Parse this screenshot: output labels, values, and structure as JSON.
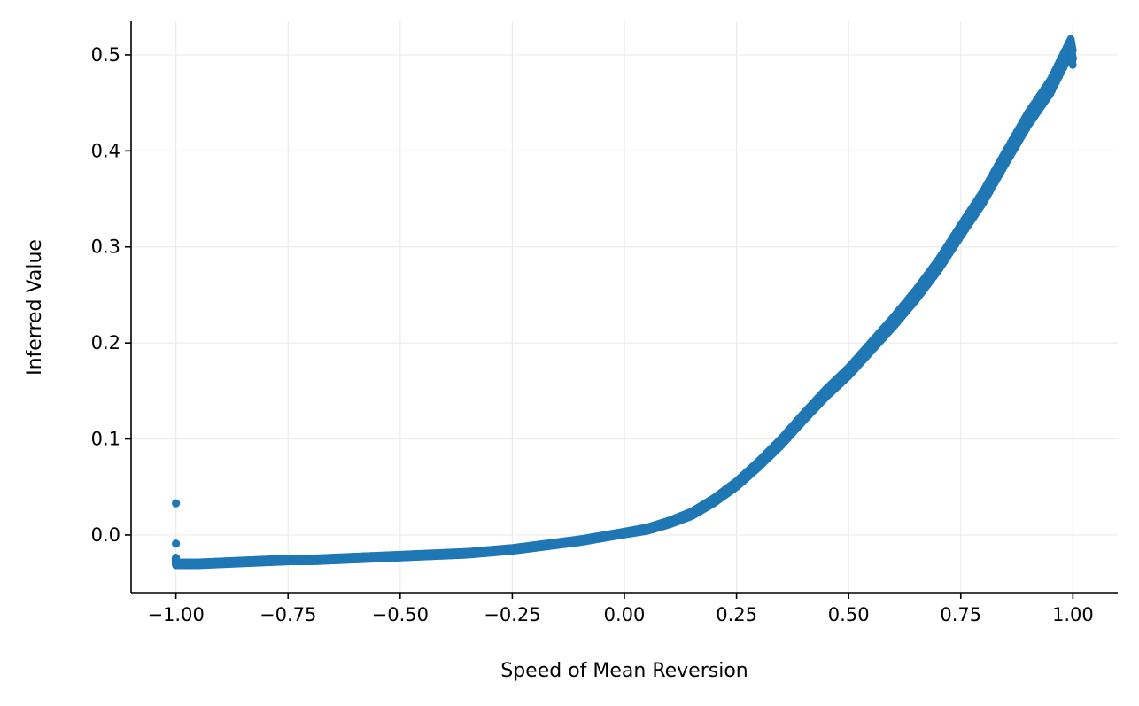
{
  "chart_data": {
    "type": "scatter",
    "title": "",
    "xlabel": "Speed of Mean Reversion",
    "ylabel": "Inferred Value",
    "xlim": [
      -1.1,
      1.1
    ],
    "ylim": [
      -0.06,
      0.535
    ],
    "grid": true,
    "legend": "none",
    "x_ticks": [
      -1.0,
      -0.75,
      -0.5,
      -0.25,
      0.0,
      0.25,
      0.5,
      0.75,
      1.0
    ],
    "x_tick_labels": [
      "−1.00",
      "−0.75",
      "−0.50",
      "−0.25",
      "0.00",
      "0.25",
      "0.50",
      "0.75",
      "1.00"
    ],
    "y_ticks": [
      0.0,
      0.1,
      0.2,
      0.3,
      0.4,
      0.5
    ],
    "y_tick_labels": [
      "0.0",
      "0.1",
      "0.2",
      "0.3",
      "0.4",
      "0.5"
    ],
    "series": [
      {
        "color": "#1f77b4",
        "points": [
          [
            -1.0,
            0.033
          ],
          [
            -1.0,
            -0.009
          ],
          [
            -1.0,
            -0.025
          ],
          [
            -1.0,
            -0.03
          ],
          [
            -0.95,
            -0.03
          ],
          [
            -0.9,
            -0.029
          ],
          [
            -0.85,
            -0.028
          ],
          [
            -0.8,
            -0.027
          ],
          [
            -0.75,
            -0.026
          ],
          [
            -0.7,
            -0.026
          ],
          [
            -0.65,
            -0.025
          ],
          [
            -0.6,
            -0.024
          ],
          [
            -0.55,
            -0.023
          ],
          [
            -0.5,
            -0.022
          ],
          [
            -0.45,
            -0.021
          ],
          [
            -0.4,
            -0.02
          ],
          [
            -0.35,
            -0.019
          ],
          [
            -0.3,
            -0.017
          ],
          [
            -0.25,
            -0.015
          ],
          [
            -0.2,
            -0.012
          ],
          [
            -0.15,
            -0.009
          ],
          [
            -0.1,
            -0.006
          ],
          [
            -0.05,
            -0.002
          ],
          [
            0.0,
            0.002
          ],
          [
            0.05,
            0.006
          ],
          [
            0.1,
            0.013
          ],
          [
            0.15,
            0.022
          ],
          [
            0.2,
            0.036
          ],
          [
            0.25,
            0.053
          ],
          [
            0.3,
            0.074
          ],
          [
            0.35,
            0.097
          ],
          [
            0.4,
            0.123
          ],
          [
            0.45,
            0.148
          ],
          [
            0.5,
            0.17
          ],
          [
            0.55,
            0.196
          ],
          [
            0.6,
            0.222
          ],
          [
            0.65,
            0.25
          ],
          [
            0.7,
            0.281
          ],
          [
            0.75,
            0.317
          ],
          [
            0.8,
            0.352
          ],
          [
            0.85,
            0.393
          ],
          [
            0.9,
            0.433
          ],
          [
            0.95,
            0.467
          ],
          [
            1.0,
            0.496
          ],
          [
            0.995,
            0.509
          ]
        ]
      }
    ]
  }
}
